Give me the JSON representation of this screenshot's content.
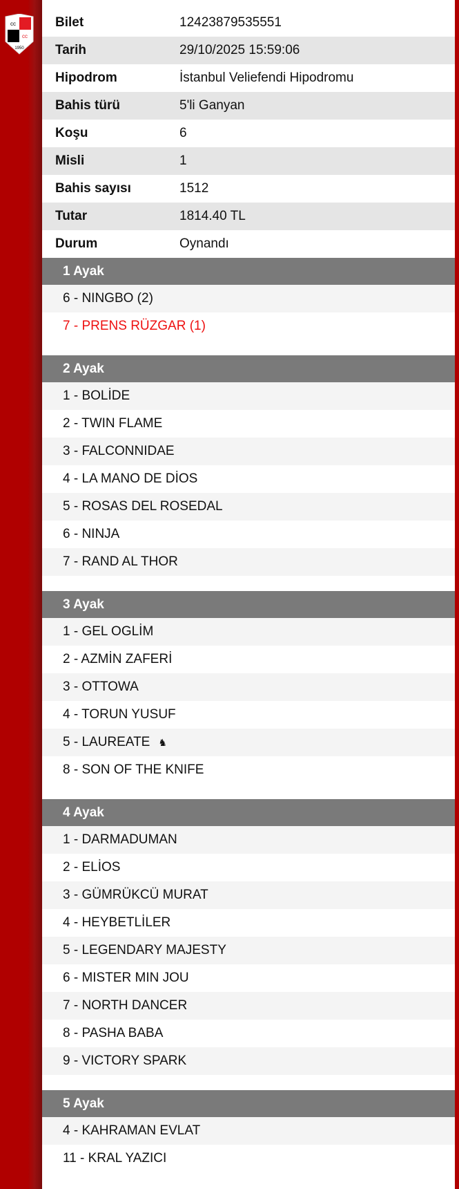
{
  "logo": {
    "text": "1950",
    "colors": [
      "#e31b23",
      "#000000",
      "#ffffff"
    ]
  },
  "info": [
    {
      "label": "Bilet",
      "value": "12423879535551"
    },
    {
      "label": "Tarih",
      "value": "29/10/2025 15:59:06"
    },
    {
      "label": "Hipodrom",
      "value": "İstanbul Veliefendi Hipodromu"
    },
    {
      "label": "Bahis türü",
      "value": "5'li Ganyan"
    },
    {
      "label": "Koşu",
      "value": "6"
    },
    {
      "label": "Misli",
      "value": "1"
    },
    {
      "label": "Bahis sayısı",
      "value": "1512"
    },
    {
      "label": "Tutar",
      "value": "1814.40 TL"
    },
    {
      "label": "Durum",
      "value": "Oynandı"
    }
  ],
  "legs": [
    {
      "title": "1 Ayak",
      "items": [
        {
          "text": "6 - NINGBO (2)"
        },
        {
          "text": "7 - PRENS RÜZGAR (1)",
          "winner": true
        }
      ]
    },
    {
      "title": "2 Ayak",
      "items": [
        {
          "text": "1 - BOLİDE"
        },
        {
          "text": "2 - TWIN FLAME"
        },
        {
          "text": "3 - FALCONNIDAE"
        },
        {
          "text": "4 - LA MANO DE DİOS"
        },
        {
          "text": "5 - ROSAS DEL ROSEDAL"
        },
        {
          "text": "6 - NINJA"
        },
        {
          "text": "7 - RAND AL THOR"
        }
      ]
    },
    {
      "title": "3 Ayak",
      "items": [
        {
          "text": "1 - GEL OGLİM"
        },
        {
          "text": "2 - AZMİN ZAFERİ"
        },
        {
          "text": "3 - OTTOWA"
        },
        {
          "text": "4 - TORUN YUSUF"
        },
        {
          "text": "5 - LAUREATE",
          "icon": "horse-head-icon"
        },
        {
          "text": "8 - SON OF THE KNIFE"
        }
      ]
    },
    {
      "title": "4 Ayak",
      "items": [
        {
          "text": "1 - DARMADUMAN"
        },
        {
          "text": "2 - ELİOS"
        },
        {
          "text": "3 - GÜMRÜKCÜ MURAT"
        },
        {
          "text": "4 - HEYBETLİLER"
        },
        {
          "text": "5 - LEGENDARY MAJESTY"
        },
        {
          "text": "6 - MISTER MIN JOU"
        },
        {
          "text": "7 - NORTH DANCER"
        },
        {
          "text": "8 - PASHA BABA"
        },
        {
          "text": "9 - VICTORY SPARK"
        }
      ]
    },
    {
      "title": "5 Ayak",
      "items": [
        {
          "text": "4 - KAHRAMAN EVLAT"
        },
        {
          "text": "11 - KRAL YAZICI"
        }
      ]
    }
  ]
}
